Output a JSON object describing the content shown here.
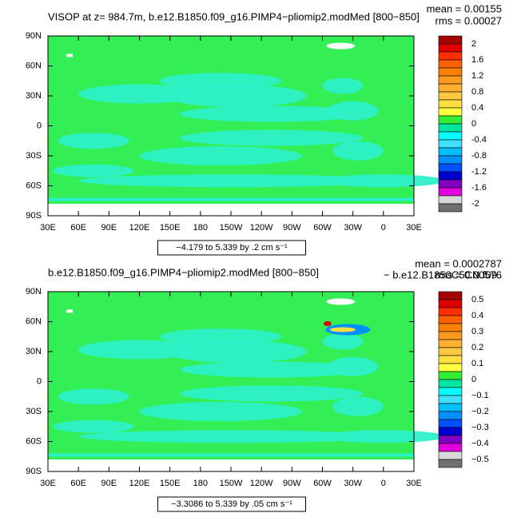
{
  "panels": [
    {
      "title": "VISOP at z= 984.7m, b.e12.B1850.f09_g16.PIMP4−pliomip2.modMed [800−850]",
      "mean": "mean = 0.00155",
      "rms": "rms = 0.00027",
      "lat_labels": [
        "90N",
        "60N",
        "30N",
        "0",
        "30S",
        "60S",
        "90S"
      ],
      "lon_labels": [
        "30E",
        "60E",
        "90E",
        "120E",
        "150E",
        "180",
        "150W",
        "120W",
        "90W",
        "60W",
        "30W",
        "0",
        "30E"
      ],
      "range_note": "−4.179 to 5.339 by .2 cm s⁻¹",
      "colorbar_labels": [
        "2",
        "1.6",
        "1.2",
        "0.8",
        "0.4",
        "0",
        "-0.4",
        "-0.8",
        "-1.2",
        "-1.6",
        "-2"
      ]
    },
    {
      "title": "b.e12.B1850.f09_g16.PIMP4−pliomip2.modMed [800−850]",
      "mean": "mean = 0.0002787",
      "rms": "rms = 0.00576",
      "subtitle_right": "− b.e12.B1850C5CN.f09",
      "lat_labels": [
        "90N",
        "60N",
        "30N",
        "0",
        "30S",
        "60S",
        "90S"
      ],
      "lon_labels": [
        "30E",
        "60E",
        "90E",
        "120E",
        "150E",
        "180",
        "150W",
        "120W",
        "90W",
        "60W",
        "30W",
        "0",
        "30E"
      ],
      "range_note": "−3.3086 to 5.339 by .05 cm s⁻¹",
      "colorbar_labels": [
        "0.5",
        "0.4",
        "0.3",
        "0.2",
        "0.1",
        "0",
        "−0.1",
        "−0.2",
        "−0.3",
        "−0.4",
        "−0.5"
      ]
    }
  ]
}
